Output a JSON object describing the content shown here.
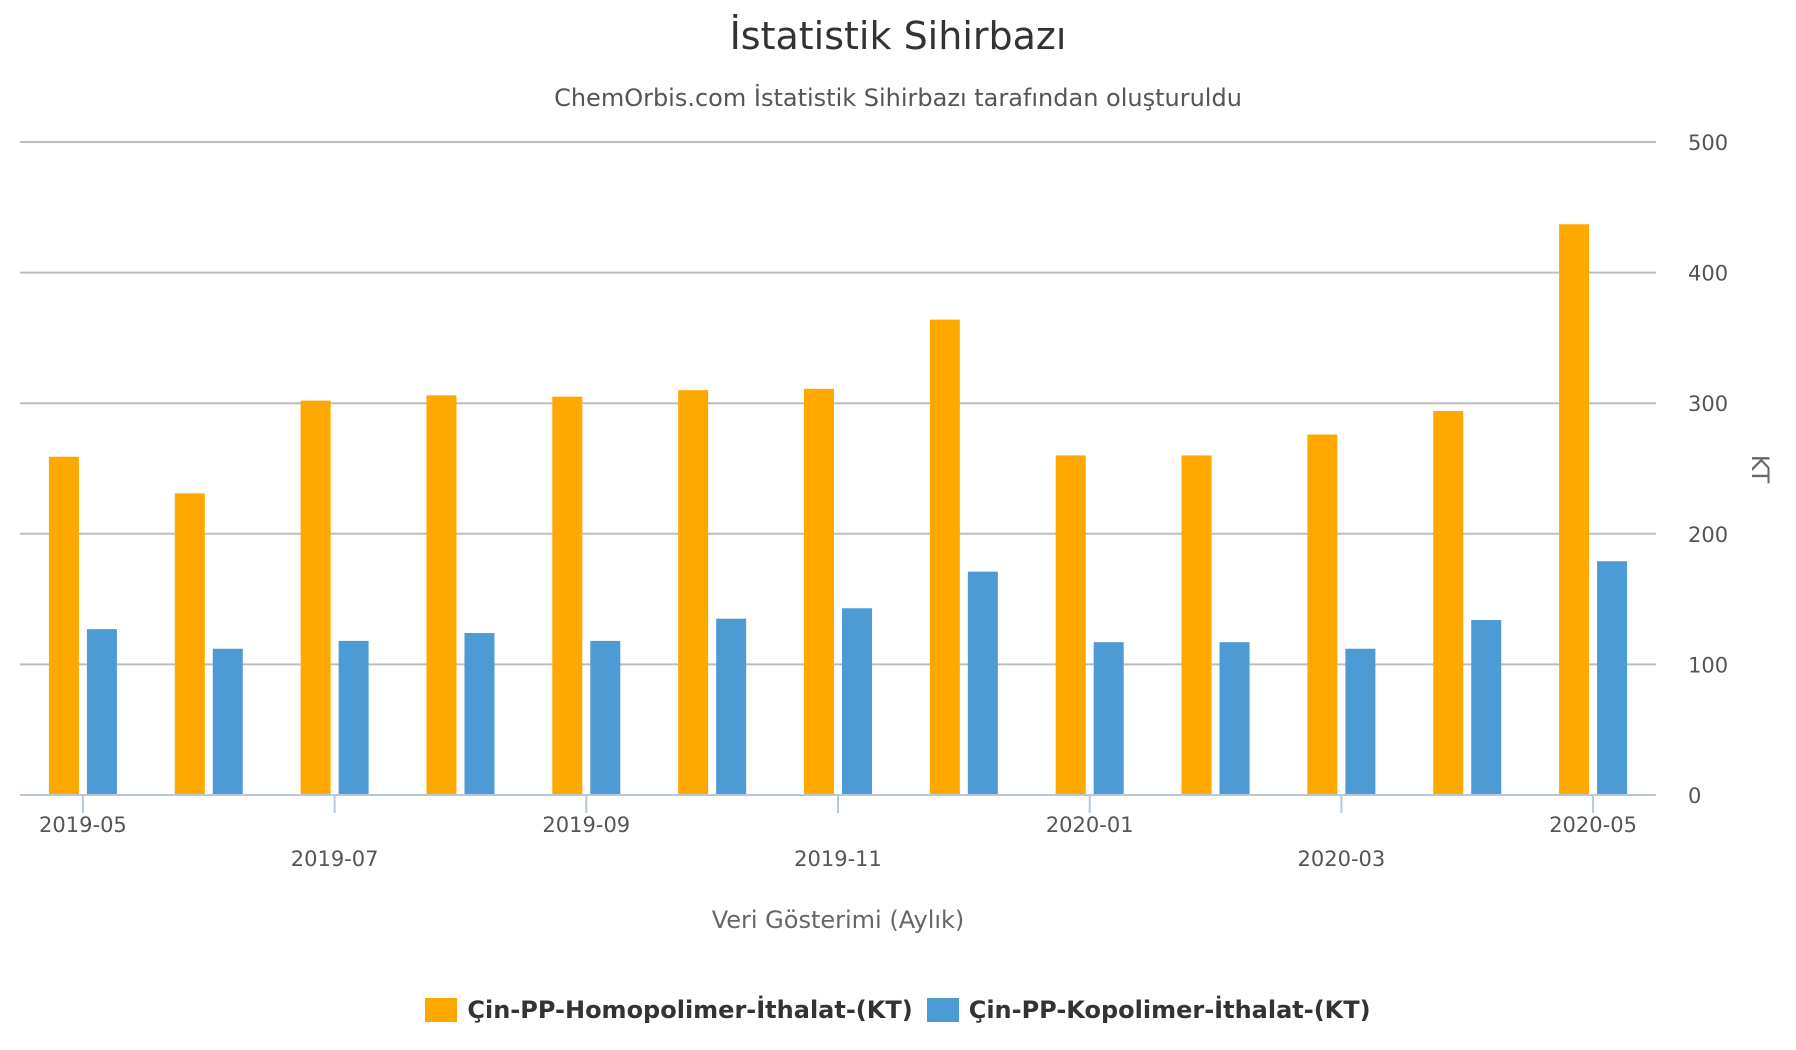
{
  "chart_data": {
    "type": "bar",
    "title": "İstatistik Sihirbazı",
    "subtitle": "ChemOrbis.com İstatistik Sihirbazı tarafından oluşturuldu",
    "xlabel": "Veri Gösterimi (Aylık)",
    "ylabel": "KT",
    "ylim": [
      0,
      500
    ],
    "yticks": [
      0,
      100,
      200,
      300,
      400,
      500
    ],
    "grid": true,
    "legend_position": "bottom",
    "categories": [
      "2019-05",
      "2019-06",
      "2019-07",
      "2019-08",
      "2019-09",
      "2019-10",
      "2019-11",
      "2019-12",
      "2020-01",
      "2020-02",
      "2020-03",
      "2020-04",
      "2020-05"
    ],
    "x_tick_labels": [
      "2019-05",
      "2019-07",
      "2019-09",
      "2019-11",
      "2020-01",
      "2020-03",
      "2020-05"
    ],
    "series": [
      {
        "name": "Çin-PP-Homopolimer-İthalat-(KT)",
        "color": "#FFA800",
        "values": [
          259,
          231,
          302,
          306,
          305,
          310,
          311,
          364,
          260,
          260,
          276,
          294,
          437
        ]
      },
      {
        "name": "Çin-PP-Kopolimer-İthalat-(KT)",
        "color": "#4D9BD4",
        "values": [
          127,
          112,
          118,
          124,
          118,
          135,
          143,
          171,
          117,
          117,
          112,
          134,
          179
        ]
      }
    ]
  }
}
